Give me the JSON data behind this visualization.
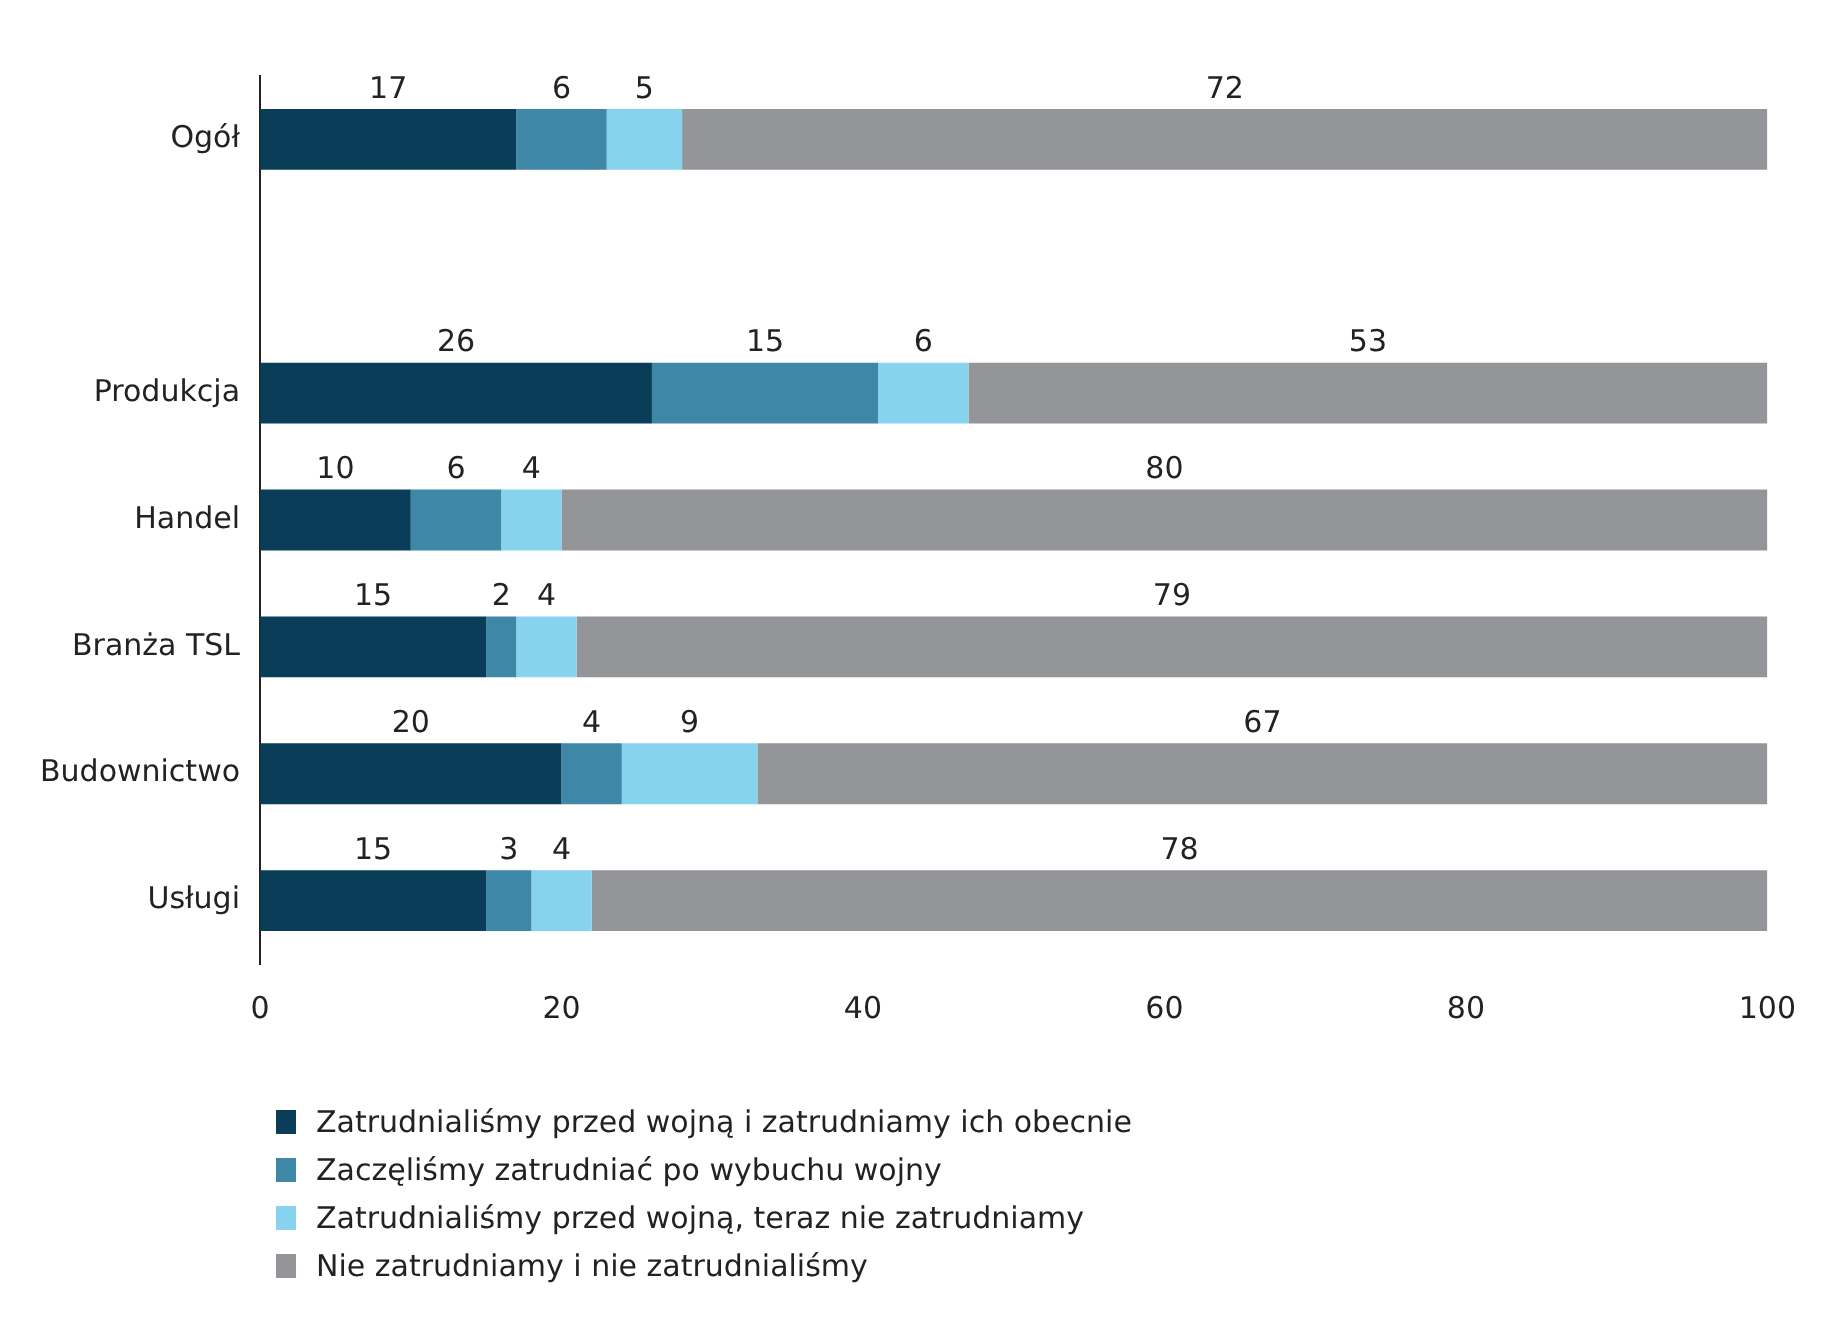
{
  "chart_data": {
    "type": "bar",
    "orientation": "horizontal",
    "stacked": true,
    "categories": [
      "Ogół",
      null,
      "Produkcja",
      "Handel",
      "Branża TSL",
      "Budownictwo",
      "Usługi"
    ],
    "series": [
      {
        "name": "Zatrudnialiśmy przed wojną i zatrudniamy ich obecnie",
        "color": "#0a3d57",
        "values": [
          17,
          null,
          26,
          10,
          15,
          20,
          15
        ]
      },
      {
        "name": "Zaczęliśmy zatrudniać po wybuchu wojny",
        "color": "#3f87a6",
        "values": [
          6,
          null,
          15,
          6,
          2,
          4,
          3
        ]
      },
      {
        "name": "Zatrudnialiśmy przed wojną, teraz nie zatrudniamy",
        "color": "#87d3ee",
        "values": [
          5,
          null,
          6,
          4,
          4,
          9,
          4
        ]
      },
      {
        "name": "Nie zatrudniamy i nie zatrudnialiśmy",
        "color": "#939598",
        "values": [
          72,
          null,
          53,
          80,
          79,
          67,
          78
        ]
      }
    ],
    "xlim": [
      0,
      100
    ],
    "xticks": [
      0,
      20,
      40,
      60,
      80,
      100
    ],
    "grid": false,
    "legend": "bottom",
    "data_labels": true
  }
}
